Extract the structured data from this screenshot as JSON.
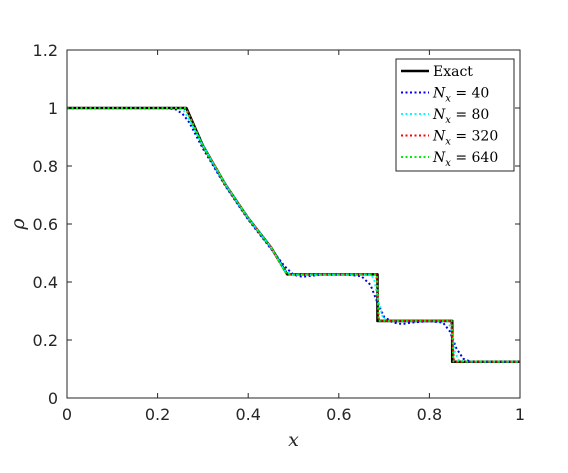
{
  "chart_data": {
    "type": "line",
    "title": "",
    "xlabel": "x",
    "ylabel": "ρ",
    "xlim": [
      0,
      1
    ],
    "ylim": [
      0,
      1.2
    ],
    "xticks": [
      "0",
      "0.2",
      "0.4",
      "0.6",
      "0.8",
      "1"
    ],
    "yticks": [
      "0",
      "0.2",
      "0.4",
      "0.6",
      "0.8",
      "1",
      "1.2"
    ],
    "legend_position": "top-right",
    "grid": false,
    "series": [
      {
        "name": "Exact",
        "legend_main": "Exact",
        "legend_sub": "",
        "legend_rest": "",
        "color": "#000000",
        "style": "solid",
        "points": [
          [
            0,
            1
          ],
          [
            0.2635,
            1
          ],
          [
            0.3,
            0.87
          ],
          [
            0.35,
            0.735
          ],
          [
            0.4,
            0.62
          ],
          [
            0.45,
            0.52
          ],
          [
            0.4862,
            0.4263
          ],
          [
            0.6854,
            0.4263
          ],
          [
            0.6854,
            0.2656
          ],
          [
            0.8504,
            0.2656
          ],
          [
            0.8504,
            0.125
          ],
          [
            1,
            0.125
          ]
        ]
      },
      {
        "name": "N_x = 40",
        "legend_main": "N",
        "legend_sub": "x",
        "legend_rest": " = 40",
        "color": "#0000ee",
        "style": "dotted",
        "points": [
          [
            0,
            1
          ],
          [
            0.22,
            1
          ],
          [
            0.24,
            0.995
          ],
          [
            0.255,
            0.98
          ],
          [
            0.27,
            0.95
          ],
          [
            0.3,
            0.86
          ],
          [
            0.35,
            0.73
          ],
          [
            0.4,
            0.615
          ],
          [
            0.45,
            0.515
          ],
          [
            0.48,
            0.455
          ],
          [
            0.5,
            0.425
          ],
          [
            0.52,
            0.418
          ],
          [
            0.56,
            0.425
          ],
          [
            0.62,
            0.425
          ],
          [
            0.65,
            0.42
          ],
          [
            0.67,
            0.39
          ],
          [
            0.685,
            0.33
          ],
          [
            0.7,
            0.28
          ],
          [
            0.72,
            0.26
          ],
          [
            0.74,
            0.255
          ],
          [
            0.76,
            0.26
          ],
          [
            0.8,
            0.265
          ],
          [
            0.83,
            0.26
          ],
          [
            0.845,
            0.23
          ],
          [
            0.86,
            0.17
          ],
          [
            0.875,
            0.135
          ],
          [
            0.89,
            0.126
          ],
          [
            0.92,
            0.125
          ],
          [
            1,
            0.125
          ]
        ]
      },
      {
        "name": "N_x = 80",
        "legend_main": "N",
        "legend_sub": "x",
        "legend_rest": " = 80",
        "color": "#00ffff",
        "style": "dotted",
        "points": [
          [
            0,
            1
          ],
          [
            0.245,
            1
          ],
          [
            0.258,
            0.99
          ],
          [
            0.27,
            0.96
          ],
          [
            0.3,
            0.87
          ],
          [
            0.35,
            0.735
          ],
          [
            0.4,
            0.62
          ],
          [
            0.45,
            0.52
          ],
          [
            0.48,
            0.44
          ],
          [
            0.495,
            0.425
          ],
          [
            0.52,
            0.425
          ],
          [
            0.67,
            0.426
          ],
          [
            0.678,
            0.41
          ],
          [
            0.688,
            0.33
          ],
          [
            0.698,
            0.275
          ],
          [
            0.71,
            0.265
          ],
          [
            0.74,
            0.265
          ],
          [
            0.8,
            0.266
          ],
          [
            0.84,
            0.264
          ],
          [
            0.848,
            0.24
          ],
          [
            0.856,
            0.16
          ],
          [
            0.865,
            0.13
          ],
          [
            0.88,
            0.125
          ],
          [
            1,
            0.125
          ]
        ]
      },
      {
        "name": "N_x = 320",
        "legend_main": "N",
        "legend_sub": "x",
        "legend_rest": " = 320",
        "color": "#ff0000",
        "style": "dotted",
        "points": [
          [
            0,
            1
          ],
          [
            0.258,
            1
          ],
          [
            0.266,
            0.985
          ],
          [
            0.3,
            0.87
          ],
          [
            0.35,
            0.735
          ],
          [
            0.4,
            0.62
          ],
          [
            0.45,
            0.52
          ],
          [
            0.484,
            0.43
          ],
          [
            0.49,
            0.426
          ],
          [
            0.683,
            0.426
          ],
          [
            0.685,
            0.38
          ],
          [
            0.688,
            0.275
          ],
          [
            0.69,
            0.266
          ],
          [
            0.848,
            0.266
          ],
          [
            0.851,
            0.2
          ],
          [
            0.854,
            0.13
          ],
          [
            0.857,
            0.125
          ],
          [
            1,
            0.125
          ]
        ]
      },
      {
        "name": "N_x = 640",
        "legend_main": "N",
        "legend_sub": "x",
        "legend_rest": " = 640",
        "color": "#00ee00",
        "style": "dotted",
        "points": [
          [
            0,
            1
          ],
          [
            0.261,
            1
          ],
          [
            0.265,
            0.99
          ],
          [
            0.3,
            0.87
          ],
          [
            0.35,
            0.735
          ],
          [
            0.4,
            0.62
          ],
          [
            0.45,
            0.52
          ],
          [
            0.485,
            0.428
          ],
          [
            0.488,
            0.426
          ],
          [
            0.684,
            0.426
          ],
          [
            0.686,
            0.35
          ],
          [
            0.688,
            0.266
          ],
          [
            0.849,
            0.266
          ],
          [
            0.851,
            0.2
          ],
          [
            0.853,
            0.126
          ],
          [
            1,
            0.125
          ]
        ]
      }
    ]
  }
}
